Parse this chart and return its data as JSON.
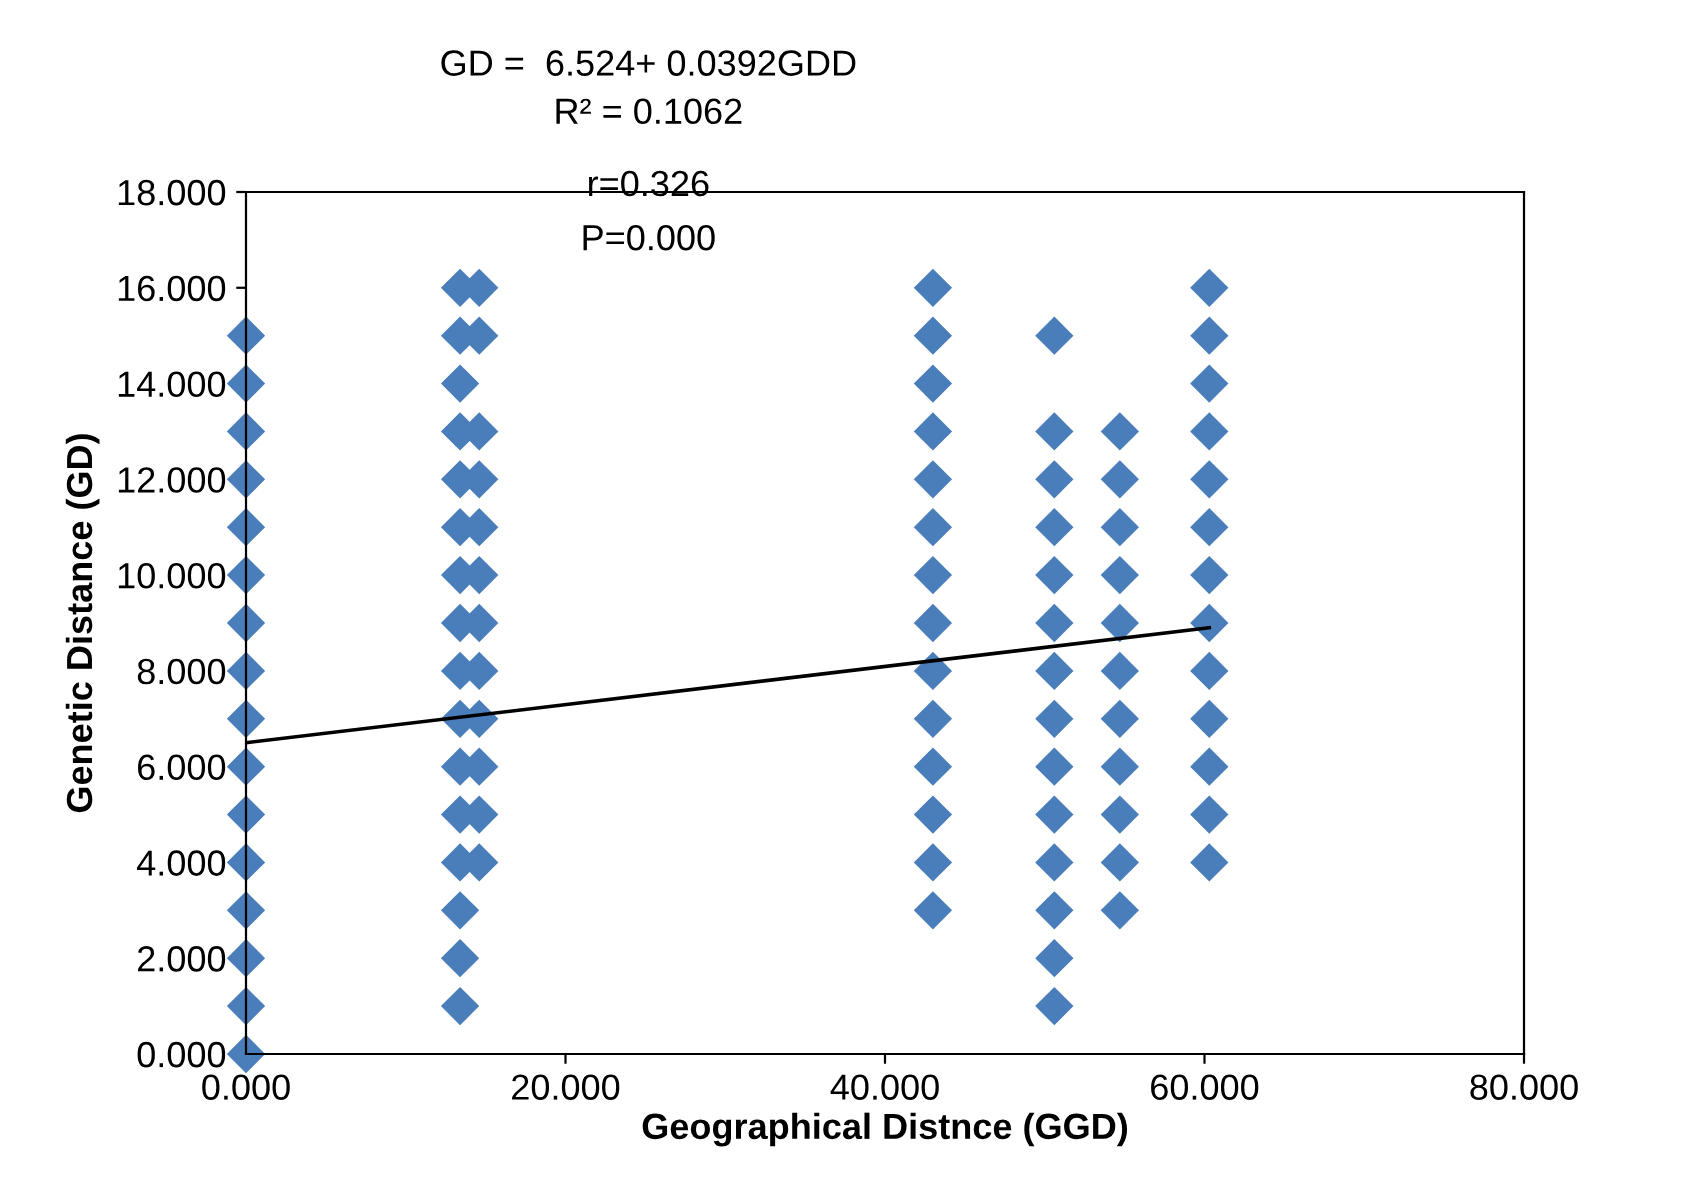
{
  "chart_data": {
    "type": "scatter",
    "xlabel": "Geographical Distnce (GGD)",
    "ylabel": "Genetic Distance (GD)",
    "annotations": [
      "GD =  6.524+ 0.0392GDD",
      "R² = 0.1062",
      "r=0.326",
      "P=0.000"
    ],
    "xlim": [
      0,
      80
    ],
    "ylim": [
      0,
      18
    ],
    "xticks": [
      {
        "value": 0,
        "label": "0.000"
      },
      {
        "value": 20,
        "label": "20.000"
      },
      {
        "value": 40,
        "label": "40.000"
      },
      {
        "value": 60,
        "label": "60.000"
      },
      {
        "value": 80,
        "label": "80.000"
      }
    ],
    "yticks": [
      {
        "value": 0,
        "label": "0.000"
      },
      {
        "value": 2,
        "label": "2.000"
      },
      {
        "value": 4,
        "label": "4.000"
      },
      {
        "value": 6,
        "label": "6.000"
      },
      {
        "value": 8,
        "label": "8.000"
      },
      {
        "value": 10,
        "label": "10.000"
      },
      {
        "value": 12,
        "label": "12.000"
      },
      {
        "value": 14,
        "label": "14.000"
      },
      {
        "value": 16,
        "label": "16.000"
      },
      {
        "value": 18,
        "label": "18.000"
      }
    ],
    "grid": false,
    "legend": false,
    "marker": "diamond",
    "series": [
      {
        "color": "#4a7ebb",
        "x": [
          0,
          0,
          0,
          0,
          0,
          0,
          0,
          0,
          0,
          0,
          0,
          0,
          0,
          0,
          0,
          0,
          13.4,
          13.4,
          13.4,
          13.4,
          13.4,
          13.4,
          13.4,
          13.4,
          13.4,
          13.4,
          13.4,
          13.4,
          13.4,
          13.4,
          13.4,
          13.4,
          14.6,
          14.6,
          14.6,
          14.6,
          14.6,
          14.6,
          14.6,
          14.6,
          14.6,
          14.6,
          14.6,
          14.6,
          43,
          43,
          43,
          43,
          43,
          43,
          43,
          43,
          43,
          43,
          43,
          43,
          43,
          43,
          50.6,
          50.6,
          50.6,
          50.6,
          50.6,
          50.6,
          50.6,
          50.6,
          50.6,
          50.6,
          50.6,
          50.6,
          50.6,
          50.6,
          54.7,
          54.7,
          54.7,
          54.7,
          54.7,
          54.7,
          54.7,
          54.7,
          54.7,
          54.7,
          54.7,
          60.3,
          60.3,
          60.3,
          60.3,
          60.3,
          60.3,
          60.3,
          60.3,
          60.3,
          60.3,
          60.3,
          60.3,
          60.3
        ],
        "values": [
          0,
          1,
          2,
          3,
          4,
          5,
          6,
          7,
          8,
          9,
          10,
          11,
          12,
          13,
          14,
          15,
          1,
          2,
          3,
          4,
          5,
          6,
          7,
          8,
          9,
          10,
          11,
          12,
          13,
          14,
          15,
          16,
          4,
          5,
          6,
          7,
          8,
          9,
          10,
          11,
          12,
          13,
          15,
          16,
          3,
          4,
          5,
          6,
          7,
          8,
          9,
          10,
          11,
          12,
          13,
          14,
          15,
          16,
          1,
          2,
          3,
          4,
          5,
          6,
          7,
          8,
          9,
          10,
          11,
          12,
          13,
          15,
          3,
          4,
          5,
          6,
          7,
          8,
          9,
          10,
          11,
          12,
          13,
          4,
          5,
          6,
          7,
          8,
          9,
          10,
          11,
          12,
          13,
          14,
          15,
          16
        ]
      },
      {
        "type": "line",
        "color": "#000000",
        "line_style": "solid",
        "marker": "none",
        "x": [
          0,
          60.3
        ],
        "values": [
          6.5,
          8.9
        ]
      }
    ]
  }
}
